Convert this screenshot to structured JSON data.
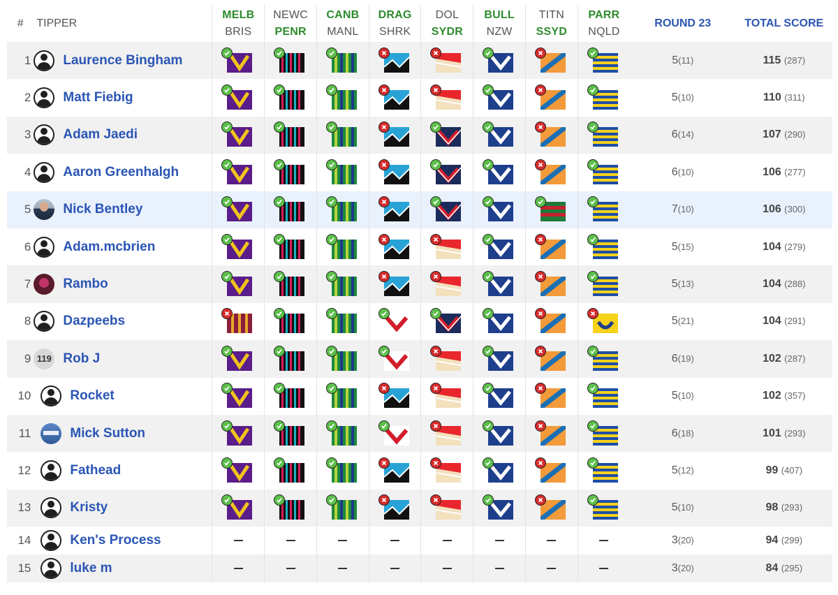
{
  "header": {
    "hash": "#",
    "tipper": "TIPPER",
    "round": "ROUND 23",
    "total": "TOTAL SCORE",
    "games": [
      {
        "home": "MELB",
        "away": "BRIS",
        "winner": "home"
      },
      {
        "home": "NEWC",
        "away": "PENR",
        "winner": "away"
      },
      {
        "home": "CANB",
        "away": "MANL",
        "winner": "home"
      },
      {
        "home": "DRAG",
        "away": "SHRK",
        "winner": "home"
      },
      {
        "home": "DOL",
        "away": "SYDR",
        "winner": "away"
      },
      {
        "home": "BULL",
        "away": "NZW",
        "winner": "home"
      },
      {
        "home": "TITN",
        "away": "SSYD",
        "winner": "away"
      },
      {
        "home": "PARR",
        "away": "NQLD",
        "winner": "home"
      }
    ]
  },
  "rows": [
    {
      "rank": "1",
      "name": "Laurence Bingham",
      "avatar": "generic",
      "picks": [
        "MELB|ok",
        "PENR|ok",
        "CANB|ok",
        "SHRK|bad",
        "DOL|bad",
        "BULL|ok",
        "TITN|bad",
        "PARR|ok"
      ],
      "round": "5",
      "round_sub": "(11)",
      "total": "115",
      "total_sub": "(287)"
    },
    {
      "rank": "2",
      "name": "Matt Fiebig",
      "avatar": "generic",
      "picks": [
        "MELB|ok",
        "PENR|ok",
        "CANB|ok",
        "SHRK|bad",
        "DOL|bad",
        "BULL|ok",
        "TITN|bad",
        "PARR|ok"
      ],
      "round": "5",
      "round_sub": "(10)",
      "total": "110",
      "total_sub": "(311)"
    },
    {
      "rank": "3",
      "name": "Adam Jaedi",
      "avatar": "generic",
      "picks": [
        "MELB|ok",
        "PENR|ok",
        "CANB|ok",
        "SHRK|bad",
        "SYDR|ok",
        "BULL|ok",
        "TITN|bad",
        "PARR|ok"
      ],
      "round": "6",
      "round_sub": "(14)",
      "total": "107",
      "total_sub": "(290)"
    },
    {
      "rank": "4",
      "name": "Aaron Greenhalgh",
      "avatar": "generic",
      "picks": [
        "MELB|ok",
        "PENR|ok",
        "CANB|ok",
        "SHRK|bad",
        "SYDR|ok",
        "BULL|ok",
        "TITN|bad",
        "PARR|ok"
      ],
      "round": "6",
      "round_sub": "(10)",
      "total": "106",
      "total_sub": "(277)"
    },
    {
      "rank": "5",
      "name": "Nick Bentley",
      "avatar": "photo-nick",
      "picks": [
        "MELB|ok",
        "PENR|ok",
        "CANB|ok",
        "SHRK|bad",
        "SYDR|ok",
        "BULL|ok",
        "SSYD|ok",
        "PARR|ok"
      ],
      "round": "7",
      "round_sub": "(10)",
      "total": "106",
      "total_sub": "(300)"
    },
    {
      "rank": "6",
      "name": "Adam.mcbrien",
      "avatar": "generic",
      "picks": [
        "MELB|ok",
        "PENR|ok",
        "CANB|ok",
        "SHRK|bad",
        "DOL|bad",
        "BULL|ok",
        "TITN|bad",
        "PARR|ok"
      ],
      "round": "5",
      "round_sub": "(15)",
      "total": "104",
      "total_sub": "(279)"
    },
    {
      "rank": "7",
      "name": "Rambo",
      "avatar": "photo-rambo",
      "picks": [
        "MELB|ok",
        "PENR|ok",
        "CANB|ok",
        "SHRK|bad",
        "DOL|bad",
        "BULL|ok",
        "TITN|bad",
        "PARR|ok"
      ],
      "round": "5",
      "round_sub": "(13)",
      "total": "104",
      "total_sub": "(288)"
    },
    {
      "rank": "8",
      "name": "Dazpeebs",
      "avatar": "generic",
      "picks": [
        "BRIS|bad",
        "PENR|ok",
        "CANB|ok",
        "DRAG|ok",
        "SYDR|ok",
        "BULL|ok",
        "TITN|bad",
        "NQLD|bad"
      ],
      "round": "5",
      "round_sub": "(21)",
      "total": "104",
      "total_sub": "(291)"
    },
    {
      "rank": "9",
      "name": "Rob J",
      "avatar": "num",
      "avatar_text": "119",
      "picks": [
        "MELB|ok",
        "PENR|ok",
        "CANB|ok",
        "DRAG|ok",
        "DOL|bad",
        "BULL|ok",
        "TITN|bad",
        "PARR|ok"
      ],
      "round": "6",
      "round_sub": "(19)",
      "total": "102",
      "total_sub": "(287)"
    },
    {
      "rank": "10",
      "name": "Rocket",
      "avatar": "generic",
      "picks": [
        "MELB|ok",
        "PENR|ok",
        "CANB|ok",
        "SHRK|bad",
        "DOL|bad",
        "BULL|ok",
        "TITN|bad",
        "PARR|ok"
      ],
      "round": "5",
      "round_sub": "(10)",
      "total": "102",
      "total_sub": "(357)"
    },
    {
      "rank": "11",
      "name": "Mick Sutton",
      "avatar": "photo-mick",
      "picks": [
        "MELB|ok",
        "PENR|ok",
        "CANB|ok",
        "DRAG|ok",
        "DOL|bad",
        "BULL|ok",
        "TITN|bad",
        "PARR|ok"
      ],
      "round": "6",
      "round_sub": "(18)",
      "total": "101",
      "total_sub": "(293)"
    },
    {
      "rank": "12",
      "name": "Fathead",
      "avatar": "generic",
      "picks": [
        "MELB|ok",
        "PENR|ok",
        "CANB|ok",
        "SHRK|bad",
        "DOL|bad",
        "BULL|ok",
        "TITN|bad",
        "PARR|ok"
      ],
      "round": "5",
      "round_sub": "(12)",
      "total": "99",
      "total_sub": "(407)"
    },
    {
      "rank": "13",
      "name": "Kristy",
      "avatar": "generic",
      "picks": [
        "MELB|ok",
        "PENR|ok",
        "CANB|ok",
        "SHRK|bad",
        "DOL|bad",
        "BULL|ok",
        "TITN|bad",
        "PARR|ok"
      ],
      "round": "5",
      "round_sub": "(10)",
      "total": "98",
      "total_sub": "(293)"
    },
    {
      "rank": "14",
      "name": "Ken's Process",
      "avatar": "generic",
      "picks": [],
      "round": "3",
      "round_sub": "(20)",
      "total": "94",
      "total_sub": "(299)"
    },
    {
      "rank": "15",
      "name": "luke m",
      "avatar": "generic",
      "picks": [],
      "round": "3",
      "round_sub": "(20)",
      "total": "84",
      "total_sub": "(295)"
    }
  ],
  "colors": {
    "link": "#2a55b5",
    "win_team": "#2e8b2e",
    "correct": "#5cbf4b",
    "wrong": "#d62b2b",
    "highlight_row": "#e9f1fd",
    "alt_row": "#f1f1f1"
  }
}
